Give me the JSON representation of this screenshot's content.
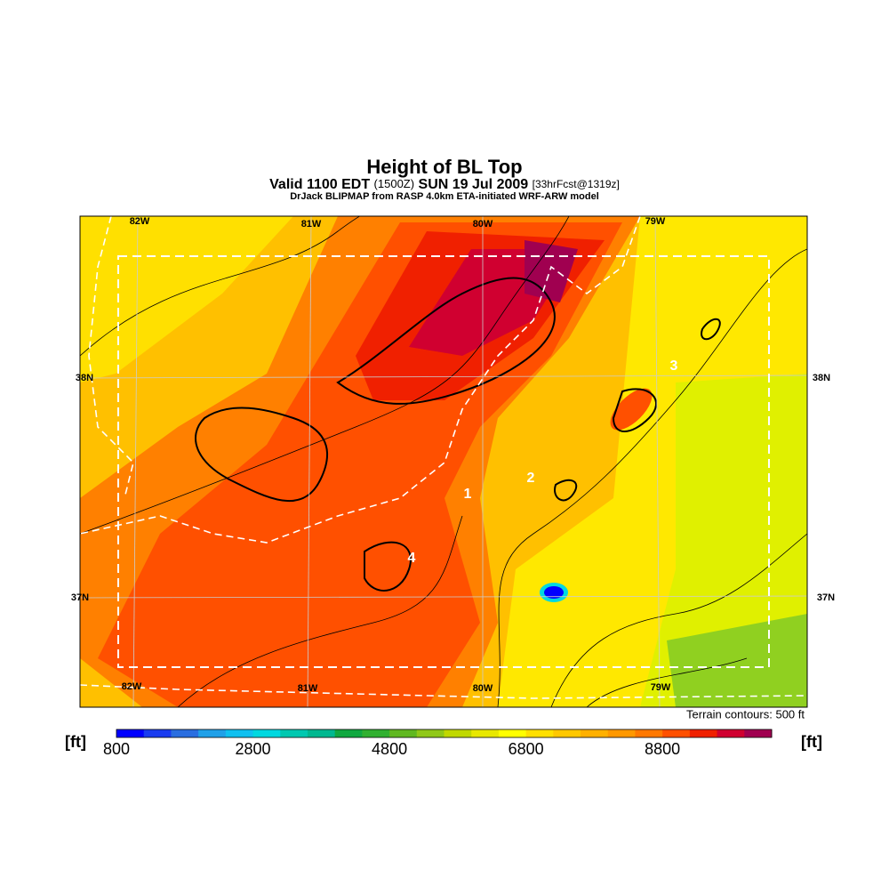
{
  "header": {
    "title": "Height of BL Top",
    "subtitle": [
      "Valid 1100 EDT",
      "(1500Z)",
      "SUN 19 Jul 2009",
      "[33hrFcst@1319z]"
    ],
    "credit": "DrJack BLIPMAP from RASP 4.0km ETA-initiated WRF-ARW model"
  },
  "map": {
    "lon_top": [
      "82W",
      "81W",
      "80W",
      "79W"
    ],
    "lon_bottom": [
      "82W",
      "81W",
      "80W",
      "79W"
    ],
    "lat_left": [
      "38N",
      "37N"
    ],
    "lat_right": [
      "38N",
      "37N"
    ],
    "sites": [
      "1",
      "2",
      "3",
      "4"
    ],
    "note": "Terrain contours: 500 ft"
  },
  "colorbar": {
    "unit_left": "[ft]",
    "unit_right": "[ft]",
    "labels": [
      "800",
      "2800",
      "4800",
      "6800",
      "8800"
    ],
    "colors": [
      "#0000ff",
      "#1a3cf0",
      "#2a6ee0",
      "#20a0e8",
      "#10c0f0",
      "#00d8e0",
      "#00c8b0",
      "#00b890",
      "#10a840",
      "#30b030",
      "#60b820",
      "#90c818",
      "#c0d800",
      "#e8e800",
      "#ffff00",
      "#ffe000",
      "#ffc800",
      "#ffb000",
      "#ff9800",
      "#ff7800",
      "#ff5000",
      "#f02000",
      "#d00030",
      "#a00050"
    ]
  }
}
